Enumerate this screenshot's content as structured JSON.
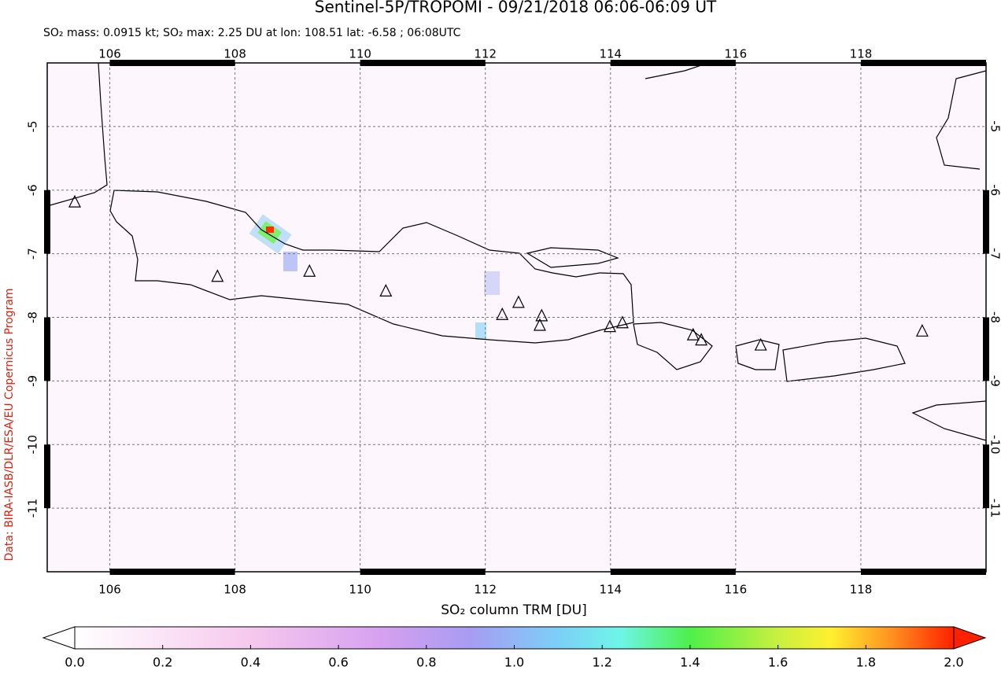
{
  "title": "Sentinel-5P/TROPOMI - 09/21/2018 06:06-06:09 UT",
  "subtitle": "SO₂ mass: 0.0915 kt; SO₂ max: 2.25 DU at lon: 108.51 lat: -6.58 ; 06:08UTC",
  "credit": "Data: BIRA-IASB/DLR/ESA/EU Copernicus Program",
  "map": {
    "xlim": [
      105,
      120
    ],
    "ylim": [
      -12,
      -4
    ],
    "xticks": [
      106,
      108,
      110,
      112,
      114,
      116,
      118
    ],
    "yticks": [
      -5,
      -6,
      -7,
      -8,
      -9,
      -10,
      -11
    ],
    "volcanoes": {
      "lon": [
        105.44,
        107.72,
        109.19,
        110.41,
        112.27,
        112.53,
        112.9,
        112.87,
        113.99,
        114.19,
        115.32,
        115.45,
        116.4,
        118.98
      ],
      "lat": [
        -6.19,
        -7.36,
        -7.28,
        -7.59,
        -7.96,
        -7.77,
        -7.98,
        -8.13,
        -8.15,
        -8.09,
        -8.28,
        -8.36,
        -8.44,
        -8.22
      ]
    }
  },
  "colorbar": {
    "label": "SO₂ column TRM [DU]",
    "lim": [
      0,
      2
    ],
    "ticks": [
      {
        "value": 0,
        "label": "0.0"
      },
      0.2,
      0.4,
      0.6,
      0.8,
      {
        "value": 1,
        "label": "1.0"
      },
      1.2,
      1.4,
      1.6,
      1.8,
      {
        "value": 2,
        "label": "2.0"
      }
    ]
  }
}
